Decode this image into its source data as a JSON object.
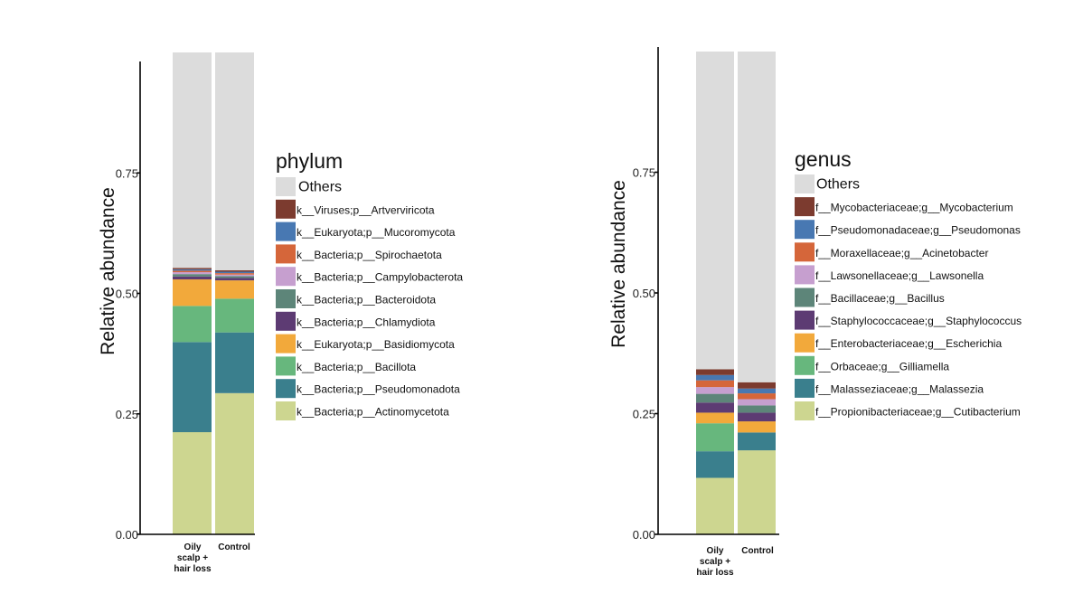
{
  "chart_data": [
    {
      "type": "bar",
      "stacked": true,
      "title": "",
      "xlabel": "",
      "ylabel": "Relative abundance",
      "ylim": [
        0,
        1
      ],
      "yticks": [
        "0.00",
        "0.25",
        "0.50",
        "0.75"
      ],
      "ytick_values": [
        0,
        0.25,
        0.5,
        0.75
      ],
      "categories": [
        [
          "Oily",
          "scalp +",
          "hair loss"
        ],
        [
          "Control"
        ]
      ],
      "legend_title": "phylum",
      "legend_position": "right",
      "series": [
        {
          "name": "k__Bacteria;p__Actinomycetota",
          "color": "#cdd690",
          "values": [
            0.212,
            0.293
          ]
        },
        {
          "name": "k__Bacteria;p__Pseudomonadota",
          "color": "#3a7f8d",
          "values": [
            0.187,
            0.126
          ]
        },
        {
          "name": "k__Bacteria;p__Bacillota",
          "color": "#67b77d",
          "values": [
            0.075,
            0.07
          ]
        },
        {
          "name": "k__Eukaryota;p__Basidiomycota",
          "color": "#f2a93b",
          "values": [
            0.055,
            0.038
          ]
        },
        {
          "name": "k__Bacteria;p__Chlamydiota",
          "color": "#5d3b73",
          "values": [
            0.006,
            0.005
          ]
        },
        {
          "name": "k__Bacteria;p__Bacteroidota",
          "color": "#5d8579",
          "values": [
            0.005,
            0.004
          ]
        },
        {
          "name": "k__Bacteria;p__Campylobacterota",
          "color": "#c69fcf",
          "values": [
            0.004,
            0.003
          ]
        },
        {
          "name": "k__Bacteria;p__Spirochaetota",
          "color": "#d5663a",
          "values": [
            0.003,
            0.003
          ]
        },
        {
          "name": "k__Eukaryota;p__Mucoromycota",
          "color": "#4878b2",
          "values": [
            0.003,
            0.003
          ]
        },
        {
          "name": "k__Viruses;p__Artverviricota",
          "color": "#7c3b2f",
          "values": [
            0.003,
            0.003
          ]
        },
        {
          "name": "Others",
          "color": "#dcdcdc",
          "values": [
            0.447,
            0.452
          ]
        }
      ]
    },
    {
      "type": "bar",
      "stacked": true,
      "title": "",
      "xlabel": "",
      "ylabel": "Relative abundance",
      "ylim": [
        0,
        1
      ],
      "yticks": [
        "0.00",
        "0.25",
        "0.50",
        "0.75"
      ],
      "ytick_values": [
        0,
        0.25,
        0.5,
        0.75
      ],
      "categories": [
        [
          "Oily",
          "scalp +",
          "hair loss"
        ],
        [
          "Control"
        ]
      ],
      "legend_title": "genus",
      "legend_position": "right",
      "series": [
        {
          "name": "f__Propionibacteriaceae;g__Cutibacterium",
          "color": "#cdd690",
          "values": [
            0.117,
            0.174
          ]
        },
        {
          "name": "f__Malasseziaceae;g__Malassezia",
          "color": "#3a7f8d",
          "values": [
            0.055,
            0.037
          ]
        },
        {
          "name": "f__Orbaceae;g__Gilliamella",
          "color": "#67b77d",
          "values": [
            0.058,
            0.0
          ]
        },
        {
          "name": "f__Enterobacteriaceae;g__Escherichia",
          "color": "#f2a93b",
          "values": [
            0.022,
            0.023
          ]
        },
        {
          "name": "f__Staphylococcaceae;g__Staphylococcus",
          "color": "#5d3b73",
          "values": [
            0.021,
            0.018
          ]
        },
        {
          "name": "f__Bacillaceae;g__Bacillus",
          "color": "#5d8579",
          "values": [
            0.018,
            0.015
          ]
        },
        {
          "name": "f__Lawsonellaceae;g__Lawsonella",
          "color": "#c69fcf",
          "values": [
            0.014,
            0.013
          ]
        },
        {
          "name": "f__Moraxellaceae;g__Acinetobacter",
          "color": "#d5663a",
          "values": [
            0.014,
            0.012
          ]
        },
        {
          "name": "f__Pseudomonadaceae;g__Pseudomonas",
          "color": "#4878b2",
          "values": [
            0.011,
            0.01
          ]
        },
        {
          "name": "f__Mycobacteriaceae;g__Mycobacterium",
          "color": "#7c3b2f",
          "values": [
            0.012,
            0.013
          ]
        },
        {
          "name": "Others",
          "color": "#dcdcdc",
          "values": [
            0.658,
            0.685
          ]
        }
      ]
    }
  ]
}
